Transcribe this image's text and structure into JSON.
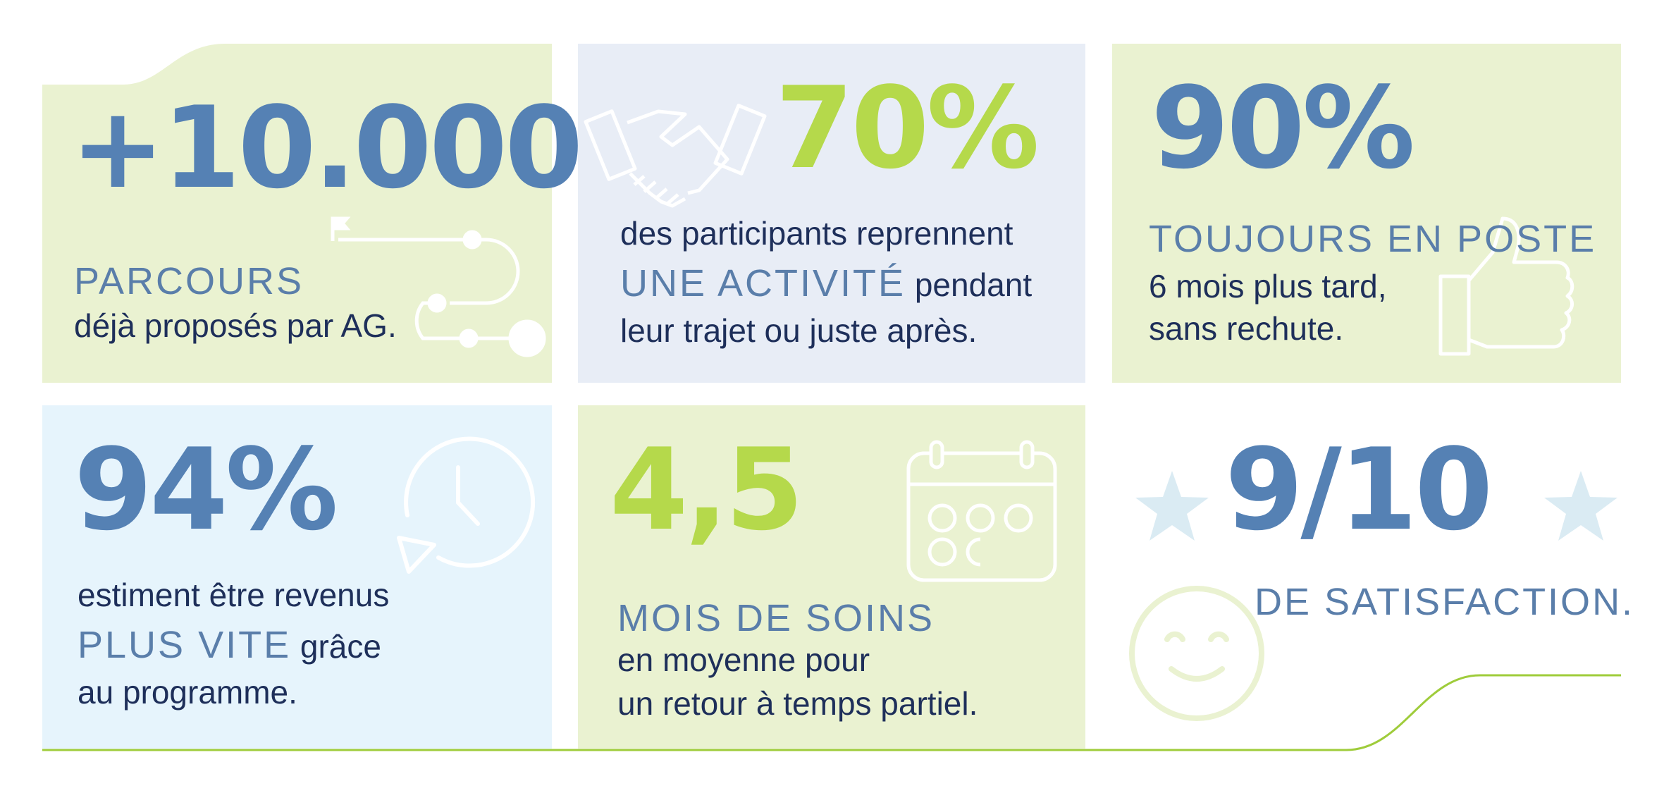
{
  "colors": {
    "blue": "#5581b4",
    "lime": "#b5d94b",
    "navy_text": "#1e2f5a",
    "green_card": "#eaf2d1",
    "lavender_card": "#e8edf6",
    "sky_card": "#e6f4fc"
  },
  "cards": {
    "parcours": {
      "value": "+10.000",
      "caption": "PARCOURS",
      "text": "déjà proposés par AG.",
      "icon": "path-route-icon"
    },
    "activite": {
      "value": "70%",
      "line1": "des participants reprennent",
      "highlight": "UNE ACTIVITÉ",
      "line2_rest": " pendant",
      "line3": "leur trajet ou juste après.",
      "icon": "handshake-icon"
    },
    "poste": {
      "value": "90%",
      "caption": "TOUJOURS EN POSTE",
      "line1": "6 mois plus tard,",
      "line2": "sans rechute.",
      "icon": "thumbs-up-icon"
    },
    "vite": {
      "value": "94%",
      "line1": "estiment être revenus",
      "highlight": "PLUS VITE",
      "line2_rest": " grâce",
      "line3": "au programme.",
      "icon": "clock-icon"
    },
    "soins": {
      "value": "4,5",
      "caption": "MOIS DE SOINS",
      "line1": "en moyenne pour",
      "line2": "un retour à temps partiel.",
      "icon": "calendar-icon"
    },
    "satisfaction": {
      "value": "9/10",
      "caption": "DE SATISFACTION.",
      "icons": [
        "star-icon",
        "star-icon",
        "smiley-icon"
      ]
    }
  }
}
